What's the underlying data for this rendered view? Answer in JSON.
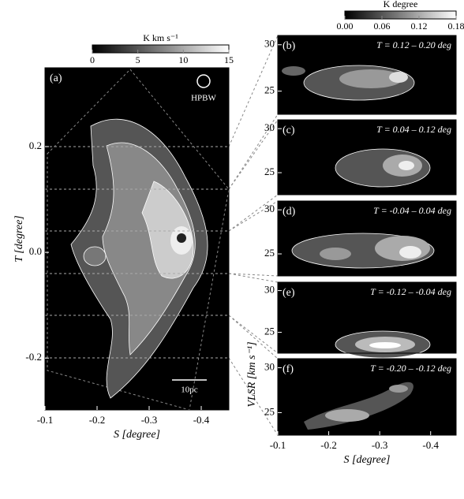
{
  "chart_data": [
    {
      "type": "map",
      "panel": "(a)",
      "annotations": [
        "HPBW",
        "10pc"
      ],
      "xlabel": "S [degree]",
      "ylabel": "T [degree]",
      "xlim": [
        -0.1,
        -0.453
      ],
      "xticks": [
        -0.1,
        -0.2,
        -0.3,
        -0.4
      ],
      "ylim": [
        -0.298,
        0.349
      ],
      "yticks": [
        0.2,
        {
          "value": 0,
          "label": "0.0"
        },
        -0.2
      ],
      "colorbar": {
        "label": "K km s⁻¹",
        "lim": [
          0,
          15
        ],
        "ticks": [
          0,
          5,
          10,
          15
        ]
      }
    },
    {
      "type": "map",
      "panel": "(b)",
      "title": "T = 0.12 – 0.20 deg",
      "xlim": [
        -0.1,
        -0.45
      ],
      "ylim": [
        22.5,
        31
      ],
      "yticks": [
        30,
        25
      ],
      "colorbar": {
        "label": "K degree",
        "lim": [
          0,
          0.18
        ],
        "ticks": [
          {
            "value": 0,
            "label": "0.00"
          },
          0.06,
          0.12,
          0.18
        ]
      }
    },
    {
      "type": "map",
      "panel": "(c)",
      "title": "T = 0.04 – 0.12 deg",
      "xlim": [
        -0.1,
        -0.45
      ],
      "ylim": [
        22.5,
        31
      ],
      "yticks": [
        30,
        25
      ]
    },
    {
      "type": "map",
      "panel": "(d)",
      "title": "T = -0.04 – 0.04 deg",
      "xlim": [
        -0.1,
        -0.45
      ],
      "ylim": [
        22.5,
        31
      ],
      "yticks": [
        30,
        25
      ]
    },
    {
      "type": "map",
      "panel": "(e)",
      "title": "T = -0.12 – -0.04 deg",
      "xlim": [
        -0.1,
        -0.45
      ],
      "ylim": [
        22.5,
        31
      ],
      "yticks": [
        30,
        25
      ]
    },
    {
      "type": "map",
      "panel": "(f)",
      "title": "T = -0.20 – -0.12 deg",
      "xlabel": "S [degree]",
      "ylabel": "VLSR [km s⁻¹]",
      "xlim": [
        -0.1,
        -0.45
      ],
      "xticks": [
        -0.1,
        -0.2,
        -0.3,
        -0.4
      ],
      "ylim": [
        22.5,
        31
      ],
      "yticks": [
        30,
        25
      ]
    }
  ]
}
